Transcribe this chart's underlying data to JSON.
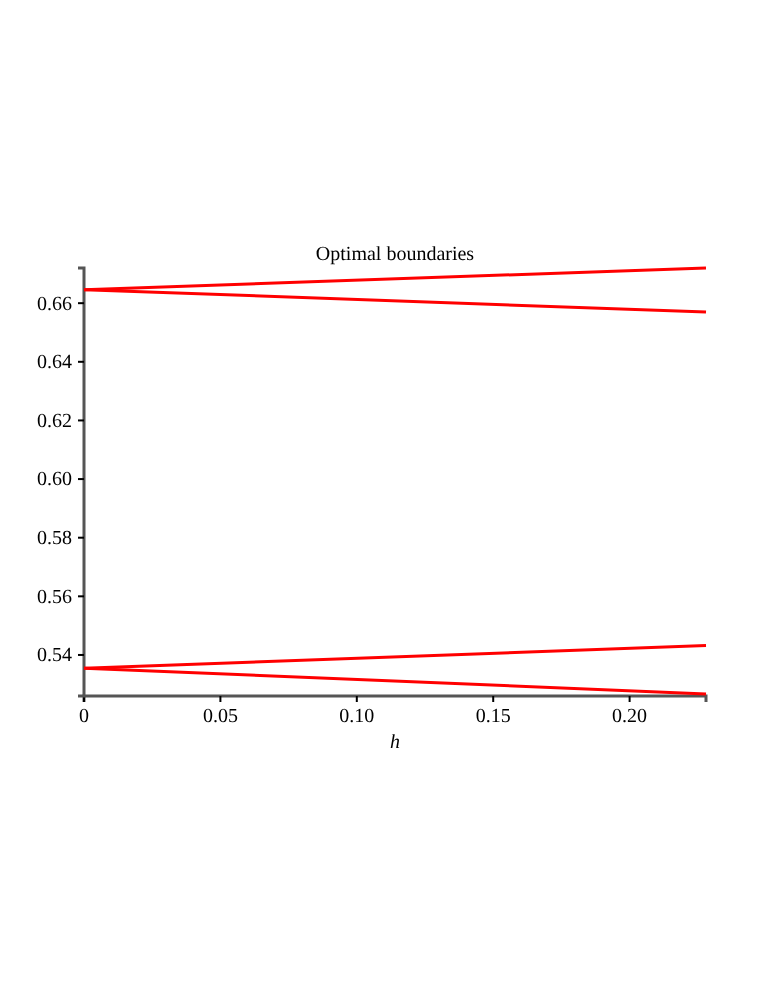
{
  "chart_data": {
    "type": "line",
    "title": "Optimal boundaries",
    "xlabel": "h",
    "x": [
      0,
      0.228
    ],
    "series": [
      {
        "color": "#ff0000",
        "values": [
          0.6646,
          0.672
        ]
      },
      {
        "color": "#ff0000",
        "values": [
          0.6646,
          0.657
        ]
      },
      {
        "color": "#ff0000",
        "values": [
          0.5355,
          0.5432
        ]
      },
      {
        "color": "#ff0000",
        "values": [
          0.5355,
          0.5267
        ]
      }
    ],
    "xlim": [
      0,
      0.228
    ],
    "xticks": [
      0,
      {
        "value": 0.05,
        "label": "0.05"
      },
      {
        "value": 0.1,
        "label": "0.10"
      },
      {
        "value": 0.15,
        "label": "0.15"
      },
      {
        "value": 0.2,
        "label": "0.20"
      }
    ],
    "ylim": [
      0.526,
      0.672
    ],
    "yticks": [
      {
        "value": 0.54,
        "label": "0.54"
      },
      {
        "value": 0.56,
        "label": "0.56"
      },
      {
        "value": 0.58,
        "label": "0.58"
      },
      {
        "value": 0.6,
        "label": "0.60"
      },
      {
        "value": 0.62,
        "label": "0.62"
      },
      {
        "value": 0.64,
        "label": "0.64"
      },
      {
        "value": 0.66,
        "label": "0.66"
      }
    ],
    "grid": false,
    "marker": "none",
    "line_style": "solid"
  }
}
